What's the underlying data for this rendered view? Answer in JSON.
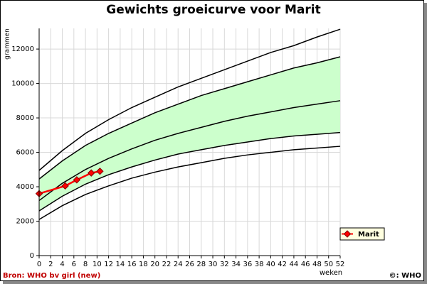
{
  "chart_data": {
    "type": "line",
    "title": "Gewichts groeicurve voor Marit",
    "y_label": "grammen",
    "x_label": "weken",
    "source": "Bron: WHO bv girl (new)",
    "copyright": "©: WHO",
    "xlim": [
      0,
      52
    ],
    "xticks": [
      0,
      2,
      4,
      6,
      8,
      10,
      12,
      14,
      16,
      18,
      20,
      22,
      24,
      26,
      28,
      30,
      32,
      34,
      36,
      38,
      40,
      42,
      44,
      46,
      48,
      50,
      52
    ],
    "ylim": [
      0,
      13200
    ],
    "yticks": [
      0,
      2000,
      4000,
      6000,
      8000,
      10000,
      12000
    ],
    "grid": true,
    "band_color": "#ccffcc",
    "curve_color": "#000000",
    "curve_x": [
      0,
      4,
      8,
      12,
      16,
      20,
      24,
      28,
      32,
      36,
      40,
      44,
      48,
      52
    ],
    "curves": [
      {
        "values": [
          4950,
          6100,
          7100,
          7900,
          8600,
          9200,
          9800,
          10300,
          10800,
          11300,
          11800,
          12200,
          12700,
          13150
        ]
      },
      {
        "values": [
          4450,
          5500,
          6400,
          7100,
          7700,
          8300,
          8800,
          9300,
          9700,
          10100,
          10500,
          10900,
          11200,
          11550
        ]
      },
      {
        "values": [
          3200,
          4200,
          5000,
          5650,
          6200,
          6700,
          7100,
          7450,
          7800,
          8100,
          8350,
          8600,
          8800,
          9000
        ]
      },
      {
        "values": [
          2600,
          3450,
          4150,
          4700,
          5150,
          5550,
          5900,
          6150,
          6400,
          6600,
          6800,
          6950,
          7050,
          7150
        ]
      },
      {
        "values": [
          2100,
          2900,
          3550,
          4050,
          4500,
          4850,
          5150,
          5400,
          5650,
          5850,
          6000,
          6150,
          6250,
          6350
        ]
      }
    ],
    "series": [
      {
        "name": "Marit",
        "color": "#ff0000",
        "x": [
          0,
          4.5,
          6.5,
          9,
          10.5
        ],
        "values": [
          3600,
          4050,
          4400,
          4800,
          4900
        ]
      }
    ],
    "legend": "right"
  }
}
